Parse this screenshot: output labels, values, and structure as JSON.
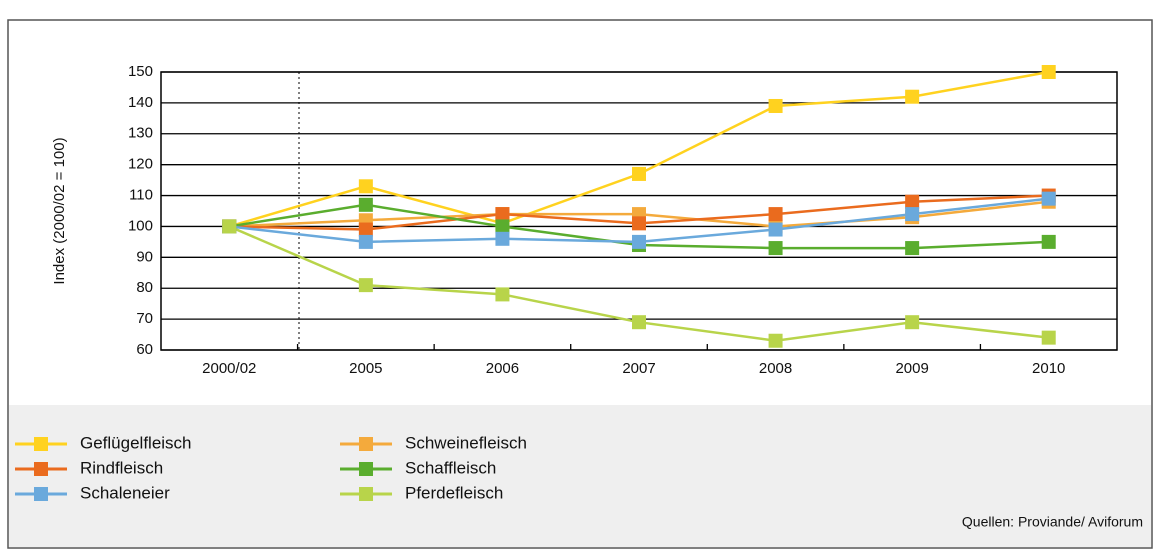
{
  "chart_data": {
    "type": "line",
    "y_label": "Index (2000/02 = 100)",
    "categories": [
      "2000/02",
      "2005",
      "2006",
      "2007",
      "2008",
      "2009",
      "2010"
    ],
    "series": [
      {
        "name": "Geflügelfleisch",
        "color": "#ffd21f",
        "values": [
          100,
          113,
          101,
          117,
          139,
          142,
          150
        ]
      },
      {
        "name": "Schweinefleisch",
        "color": "#f4aa3c",
        "values": [
          100,
          102,
          104,
          104,
          100,
          103,
          108
        ]
      },
      {
        "name": "Rindfleisch",
        "color": "#ea6b1e",
        "values": [
          100,
          99,
          104,
          101,
          104,
          108,
          110
        ]
      },
      {
        "name": "Schaffleisch",
        "color": "#5aad2e",
        "values": [
          100,
          107,
          100,
          94,
          93,
          93,
          95
        ]
      },
      {
        "name": "Schaleneier",
        "color": "#6aa9dc",
        "values": [
          100,
          95,
          96,
          95,
          99,
          104,
          109
        ]
      },
      {
        "name": "Pferdefleisch",
        "color": "#b8d44a",
        "values": [
          100,
          81,
          78,
          69,
          63,
          69,
          64
        ]
      }
    ],
    "ylim": [
      60,
      150
    ],
    "yticks": [
      60,
      70,
      80,
      90,
      100,
      110,
      120,
      130,
      140,
      150
    ],
    "grid": true,
    "source": "Quellen: Proviande/ Aviforum"
  }
}
